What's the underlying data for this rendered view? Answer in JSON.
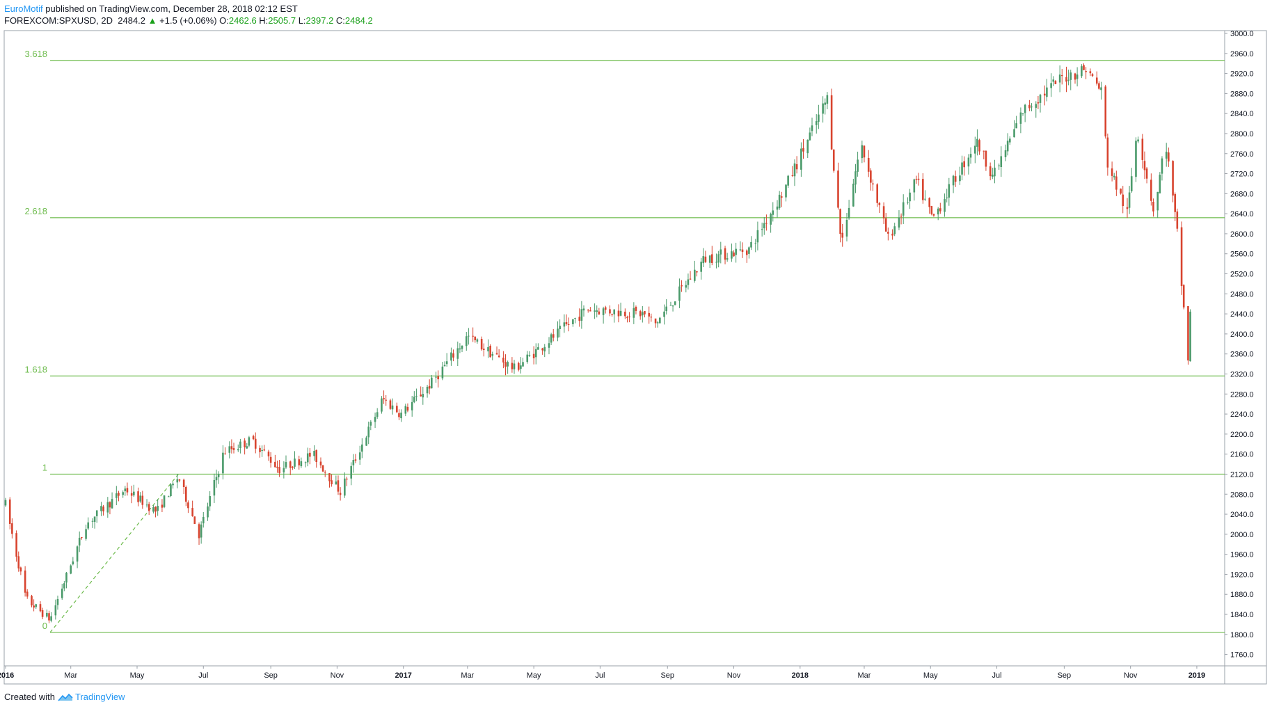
{
  "header": {
    "author": "EuroMotif",
    "published": "published on TradingView.com, December 28, 2018 02:12 EST",
    "symbol": "FOREXCOM:SPXUSD, 2D",
    "last": "2484.2",
    "change": "+1.5 (+0.06%)",
    "o_label": "O:",
    "o": "2462.6",
    "h_label": "H:",
    "h": "2505.7",
    "l_label": "L:",
    "l": "2397.2",
    "c_label": "C:",
    "c": "2484.2"
  },
  "footer": {
    "created_with": "Created with",
    "brand": "TradingView"
  },
  "colors": {
    "up": "#4a9a6a",
    "down": "#d8442f",
    "fib": "#6dbb4c",
    "fib_text": "#6dbb4c",
    "axis": "#131722",
    "border": "#9aa0a8"
  },
  "chart_data": {
    "type": "candlestick",
    "ylim": [
      1740,
      3000
    ],
    "y_ticks": [
      3000,
      2960,
      2920,
      2880,
      2840,
      2800,
      2760,
      2720,
      2680,
      2640,
      2600,
      2560,
      2520,
      2480,
      2440,
      2400,
      2360,
      2320,
      2280,
      2240,
      2200,
      2160,
      2120,
      2080,
      2040,
      2000,
      1960,
      1920,
      1880,
      1840,
      1800,
      1760
    ],
    "y_tick_labels": [
      "3000.0",
      "2960.0",
      "2920.0",
      "2880.0",
      "2840.0",
      "2800.0",
      "2760.0",
      "2720.0",
      "2680.0",
      "2640.0",
      "2600.0",
      "2560.0",
      "2520.0",
      "2480.0",
      "2440.0",
      "2400.0",
      "2360.0",
      "2320.0",
      "2280.0",
      "2240.0",
      "2200.0",
      "2160.0",
      "2120.0",
      "2080.0",
      "2040.0",
      "2000.0",
      "1960.0",
      "1920.0",
      "1880.0",
      "1840.0",
      "1800.0",
      "1760.0"
    ],
    "x_range": [
      "2016-01-01",
      "2019-01-10"
    ],
    "x_ticks": [
      {
        "date": "2016-01-01",
        "label": "2016",
        "bold": true
      },
      {
        "date": "2016-03-01",
        "label": "Mar"
      },
      {
        "date": "2016-05-01",
        "label": "May"
      },
      {
        "date": "2016-07-01",
        "label": "Jul"
      },
      {
        "date": "2016-09-01",
        "label": "Sep"
      },
      {
        "date": "2016-11-01",
        "label": "Nov"
      },
      {
        "date": "2017-01-01",
        "label": "2017",
        "bold": true
      },
      {
        "date": "2017-03-01",
        "label": "Mar"
      },
      {
        "date": "2017-05-01",
        "label": "May"
      },
      {
        "date": "2017-07-01",
        "label": "Jul"
      },
      {
        "date": "2017-09-01",
        "label": "Sep"
      },
      {
        "date": "2017-11-01",
        "label": "Nov"
      },
      {
        "date": "2018-01-01",
        "label": "2018",
        "bold": true
      },
      {
        "date": "2018-03-01",
        "label": "Mar"
      },
      {
        "date": "2018-05-01",
        "label": "May"
      },
      {
        "date": "2018-07-01",
        "label": "Jul"
      },
      {
        "date": "2018-09-01",
        "label": "Sep"
      },
      {
        "date": "2018-11-01",
        "label": "Nov"
      },
      {
        "date": "2019-01-01",
        "label": "2019",
        "bold": true
      }
    ],
    "fib_levels": [
      {
        "label": "3.618",
        "price": 2946
      },
      {
        "label": "2.618",
        "price": 2632
      },
      {
        "label": "1.618",
        "price": 2316
      },
      {
        "label": "1",
        "price": 2120
      },
      {
        "label": "0",
        "price": 1804
      }
    ],
    "fib_anchor": {
      "start": {
        "date": "2016-02-11",
        "price": 1804
      },
      "end": {
        "date": "2016-06-08",
        "price": 2120
      }
    },
    "series_anchors": [
      {
        "date": "2016-01-01",
        "price": 2060
      },
      {
        "date": "2016-01-20",
        "price": 1870
      },
      {
        "date": "2016-02-11",
        "price": 1830
      },
      {
        "date": "2016-03-15",
        "price": 2020
      },
      {
        "date": "2016-04-20",
        "price": 2090
      },
      {
        "date": "2016-05-19",
        "price": 2045
      },
      {
        "date": "2016-06-08",
        "price": 2115
      },
      {
        "date": "2016-06-27",
        "price": 2000
      },
      {
        "date": "2016-07-20",
        "price": 2165
      },
      {
        "date": "2016-08-15",
        "price": 2188
      },
      {
        "date": "2016-09-09",
        "price": 2130
      },
      {
        "date": "2016-10-10",
        "price": 2160
      },
      {
        "date": "2016-11-04",
        "price": 2085
      },
      {
        "date": "2016-12-13",
        "price": 2270
      },
      {
        "date": "2016-12-30",
        "price": 2240
      },
      {
        "date": "2017-01-26",
        "price": 2300
      },
      {
        "date": "2017-03-01",
        "price": 2395
      },
      {
        "date": "2017-04-13",
        "price": 2330
      },
      {
        "date": "2017-06-19",
        "price": 2450
      },
      {
        "date": "2017-08-10",
        "price": 2440
      },
      {
        "date": "2017-08-21",
        "price": 2420
      },
      {
        "date": "2017-10-05",
        "price": 2550
      },
      {
        "date": "2017-11-15",
        "price": 2570
      },
      {
        "date": "2017-12-18",
        "price": 2690
      },
      {
        "date": "2018-01-26",
        "price": 2870
      },
      {
        "date": "2018-02-08",
        "price": 2580
      },
      {
        "date": "2018-02-26",
        "price": 2780
      },
      {
        "date": "2018-03-23",
        "price": 2590
      },
      {
        "date": "2018-04-18",
        "price": 2705
      },
      {
        "date": "2018-05-03",
        "price": 2630
      },
      {
        "date": "2018-06-12",
        "price": 2785
      },
      {
        "date": "2018-06-28",
        "price": 2715
      },
      {
        "date": "2018-07-25",
        "price": 2845
      },
      {
        "date": "2018-08-29",
        "price": 2910
      },
      {
        "date": "2018-09-21",
        "price": 2930
      },
      {
        "date": "2018-10-05",
        "price": 2885
      },
      {
        "date": "2018-10-11",
        "price": 2740
      },
      {
        "date": "2018-10-29",
        "price": 2640
      },
      {
        "date": "2018-11-07",
        "price": 2810
      },
      {
        "date": "2018-11-23",
        "price": 2640
      },
      {
        "date": "2018-12-03",
        "price": 2790
      },
      {
        "date": "2018-12-14",
        "price": 2600
      },
      {
        "date": "2018-12-24",
        "price": 2350
      },
      {
        "date": "2018-12-27",
        "price": 2484
      }
    ]
  }
}
